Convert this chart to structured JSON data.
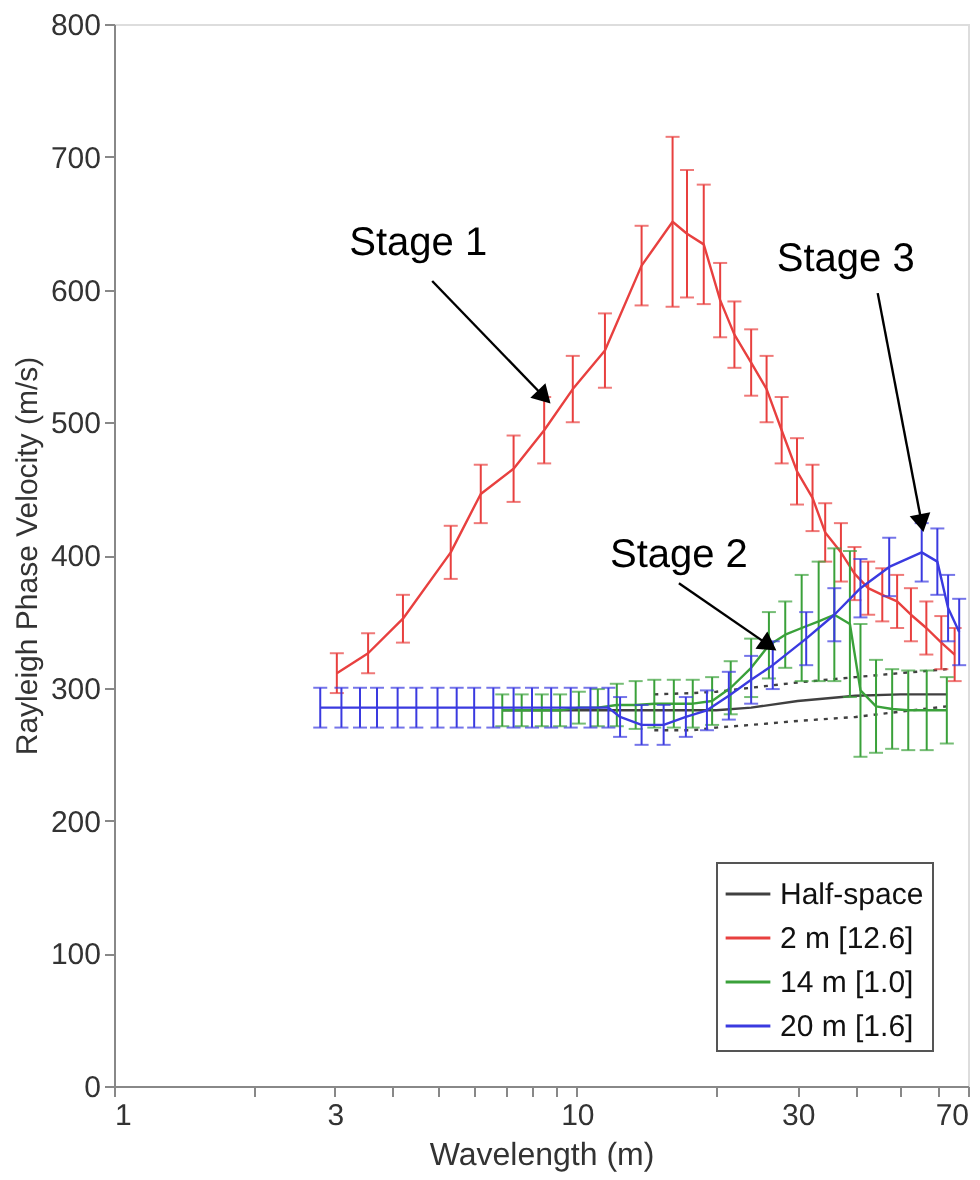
{
  "chart_data": {
    "type": "line",
    "xlabel": "Wavelength (m)",
    "ylabel": "Rayleigh Phase Velocity (m/s)",
    "log": "x",
    "xlim": [
      1,
      70
    ],
    "ylim": [
      0,
      800
    ],
    "xticks": [
      1,
      {
        "value": 2,
        "label": null
      },
      3,
      {
        "value": 4,
        "label": null
      },
      {
        "value": 5,
        "label": null
      },
      {
        "value": 6,
        "label": null
      },
      {
        "value": 7,
        "label": null
      },
      {
        "value": 8,
        "label": null
      },
      {
        "value": 9,
        "label": null
      },
      10,
      {
        "value": 20,
        "label": null
      },
      30,
      {
        "value": 40,
        "label": null
      },
      {
        "value": 50,
        "label": null
      },
      {
        "value": 60,
        "label": null
      },
      70
    ],
    "yticks": [
      0,
      100,
      200,
      300,
      400,
      500,
      600,
      700,
      800
    ],
    "grid": false,
    "legend": "bottom right",
    "annotations": [
      {
        "text": "Stage 1",
        "x": 8.5,
        "y": 519
      },
      {
        "text": "Stage 2",
        "x": 26,
        "y": 332
      },
      {
        "text": "Stage 3",
        "x": 55.6,
        "y": 424
      }
    ],
    "series": [
      {
        "name": "Half-space",
        "color": "#404040",
        "line_style": "solid",
        "x": [
          6.9,
          8.4,
          10.1,
          12.2,
          14.7,
          17.8,
          20,
          23.8,
          30,
          40,
          50,
          63
        ],
        "values": [
          283,
          283,
          283,
          283,
          283,
          283,
          283,
          285,
          290,
          294,
          295,
          295
        ]
      },
      {
        "color": "#404040",
        "line_style": "dotted",
        "x": [
          14.7,
          17.8,
          20,
          23.8,
          30,
          40,
          50,
          63
        ],
        "values": [
          268,
          268,
          270,
          272,
          275,
          278,
          282,
          286
        ]
      },
      {
        "color": "#404040",
        "line_style": "dotted",
        "x": [
          14.7,
          17.8,
          20,
          23.8,
          30,
          40,
          50,
          63
        ],
        "values": [
          295,
          296,
          297,
          300,
          304,
          308,
          311,
          314
        ]
      },
      {
        "name": "2 m [12.6]",
        "color": "#e8403f",
        "x": [
          3.03,
          3.54,
          4.21,
          5.34,
          6.2,
          7.3,
          8.5,
          9.8,
          11.5,
          13.8,
          16.1,
          17.3,
          18.8,
          20.4,
          21.9,
          23.8,
          25.7,
          27.7,
          29.9,
          32.3,
          34.4,
          37.2,
          39.8,
          42.6,
          45.7,
          49.2,
          52.7,
          56.9,
          61.3,
          65.5
        ],
        "values": [
          311,
          326,
          352,
          402,
          446,
          465,
          494,
          525,
          554,
          618,
          651,
          642,
          634,
          592,
          566,
          545,
          525,
          494,
          463,
          443,
          417,
          402,
          386,
          375,
          370,
          365,
          355,
          345,
          334,
          325
        ],
        "errors": [
          15,
          15,
          18,
          20,
          22,
          25,
          25,
          25,
          28,
          30,
          64,
          48,
          45,
          28,
          25,
          25,
          25,
          25,
          25,
          25,
          22,
          22,
          20,
          20,
          20,
          20,
          20,
          20,
          20,
          20
        ]
      },
      {
        "name": "14 m [1.0]",
        "color": "#3aa13a",
        "x": [
          6.9,
          7.6,
          8.4,
          9.2,
          10.1,
          11.1,
          12.2,
          13.4,
          14.7,
          16.2,
          17.8,
          19.6,
          21.5,
          23.8,
          26,
          28.2,
          30.6,
          33.3,
          36,
          38.9,
          41,
          44.3,
          48,
          52,
          57,
          63
        ],
        "values": [
          283,
          283,
          283,
          283,
          285,
          285,
          287,
          287,
          288,
          288,
          288,
          290,
          300,
          315,
          332,
          340,
          345,
          350,
          355,
          348,
          298,
          286,
          284,
          283,
          283,
          283
        ],
        "errors": [
          12,
          12,
          12,
          12,
          12,
          14,
          16,
          18,
          18,
          18,
          18,
          18,
          20,
          22,
          25,
          25,
          40,
          45,
          50,
          55,
          50,
          35,
          30,
          30,
          30,
          25
        ]
      },
      {
        "name": "20 m [1.6]",
        "color": "#3a3ae0",
        "x": [
          2.79,
          3.1,
          3.4,
          3.7,
          4.1,
          4.5,
          5.0,
          5.5,
          6.0,
          6.6,
          7.3,
          8.0,
          8.8,
          9.7,
          10.7,
          11.7,
          12.4,
          13.8,
          15.4,
          17.2,
          19.1,
          21.3,
          23.8,
          26.5,
          31.3,
          36,
          41,
          47.3,
          55.6,
          60.1,
          63.4,
          67
        ],
        "values": [
          285,
          285,
          285,
          285,
          285,
          285,
          285,
          285,
          285,
          285,
          285,
          285,
          285,
          285,
          285,
          285,
          278,
          272,
          272,
          278,
          283,
          294,
          306,
          317,
          337,
          355,
          375,
          391,
          402,
          395,
          360,
          342
        ],
        "errors": [
          15,
          15,
          15,
          15,
          15,
          15,
          15,
          15,
          15,
          15,
          15,
          15,
          15,
          15,
          15,
          15,
          15,
          15,
          15,
          15,
          15,
          18,
          18,
          18,
          20,
          20,
          22,
          22,
          22,
          25,
          25,
          25
        ]
      }
    ]
  }
}
